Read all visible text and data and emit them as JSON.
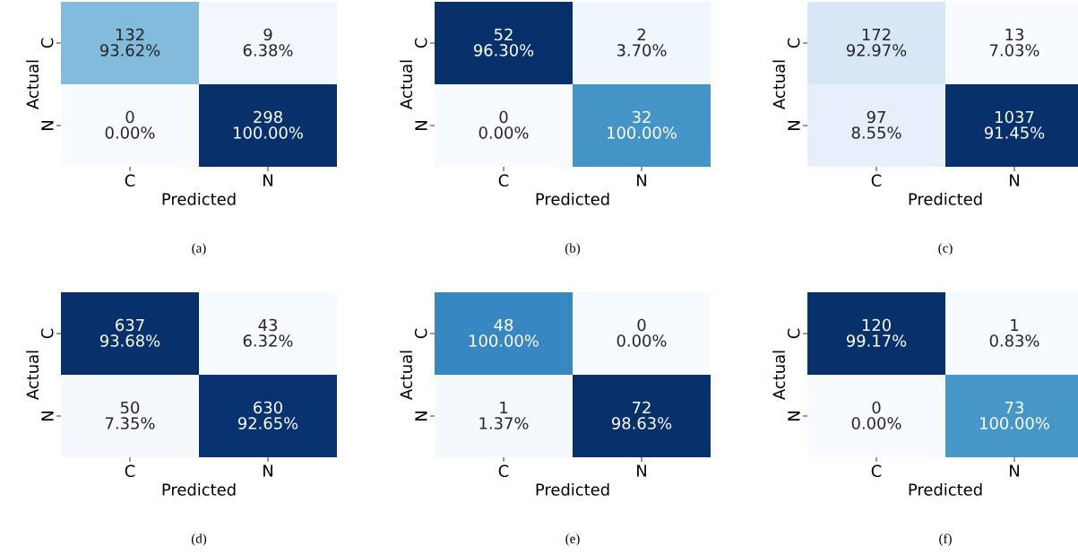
{
  "chart_data": [
    {
      "type": "heatmap",
      "categories": [
        "C",
        "N"
      ],
      "y_categories": [
        "C",
        "N"
      ],
      "xlabel": "Predicted",
      "ylabel": "Actual",
      "cells": [
        [
          132,
          9
        ],
        [
          0,
          298
        ]
      ],
      "data_labels": true,
      "annotations": [
        "(a)",
        "93.62%",
        "6.38%",
        "0.00%",
        "100.00%"
      ]
    },
    {
      "type": "heatmap",
      "categories": [
        "C",
        "N"
      ],
      "y_categories": [
        "C",
        "N"
      ],
      "xlabel": "Predicted",
      "ylabel": "Actual",
      "cells": [
        [
          52,
          2
        ],
        [
          0,
          32
        ]
      ],
      "data_labels": true,
      "annotations": [
        "(b)",
        "96.30%",
        "3.70%",
        "0.00%",
        "100.00%"
      ]
    },
    {
      "type": "heatmap",
      "categories": [
        "C",
        "N"
      ],
      "y_categories": [
        "C",
        "N"
      ],
      "xlabel": "Predicted",
      "ylabel": "Actual",
      "cells": [
        [
          172,
          13
        ],
        [
          97,
          1037
        ]
      ],
      "data_labels": true,
      "annotations": [
        "(c)",
        "92.97%",
        "7.03%",
        "8.55%",
        "91.45%"
      ]
    },
    {
      "type": "heatmap",
      "categories": [
        "C",
        "N"
      ],
      "y_categories": [
        "C",
        "N"
      ],
      "xlabel": "Predicted",
      "ylabel": "Actual",
      "cells": [
        [
          637,
          43
        ],
        [
          50,
          630
        ]
      ],
      "data_labels": true,
      "annotations": [
        "(d)",
        "93.68%",
        "6.32%",
        "7.35%",
        "92.65%"
      ]
    },
    {
      "type": "heatmap",
      "categories": [
        "C",
        "N"
      ],
      "y_categories": [
        "C",
        "N"
      ],
      "xlabel": "Predicted",
      "ylabel": "Actual",
      "cells": [
        [
          48,
          0
        ],
        [
          1,
          72
        ]
      ],
      "data_labels": true,
      "annotations": [
        "(e)",
        "100.00%",
        "0.00%",
        "1.37%",
        "98.63%"
      ]
    },
    {
      "type": "heatmap",
      "categories": [
        "C",
        "N"
      ],
      "y_categories": [
        "C",
        "N"
      ],
      "xlabel": "Predicted",
      "ylabel": "Actual",
      "cells": [
        [
          120,
          1
        ],
        [
          0,
          73
        ]
      ],
      "data_labels": true,
      "annotations": [
        "(f)",
        "99.17%",
        "0.83%",
        "0.00%",
        "100.00%"
      ]
    }
  ]
}
